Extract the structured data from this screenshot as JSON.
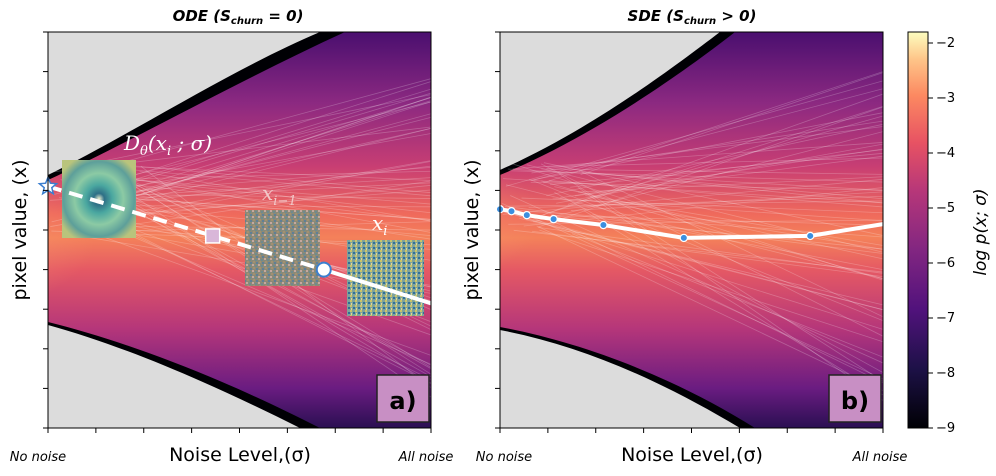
{
  "chart_data": [
    {
      "type": "heatmap",
      "panel": "a",
      "title": "ODE (S_churn = 0)",
      "title_parts": {
        "prefix": "ODE (",
        "var": "S",
        "sub": "churn",
        "suffix": " = 0)"
      },
      "xlabel": "Noise Level,(σ)",
      "ylabel": "pixel value, (x)",
      "x_start_label": "No noise",
      "x_end_label": "All noise",
      "panel_label": "a)",
      "xlim": [
        0,
        1
      ],
      "ylim": [
        -1,
        1
      ],
      "trajectory": {
        "style": "dashed-then-solid",
        "x": [
          0.0,
          0.43,
          0.72,
          1.0
        ],
        "y": [
          0.22,
          -0.03,
          -0.2,
          -0.37
        ]
      },
      "markers": [
        {
          "kind": "star",
          "x": 0.0,
          "y": 0.22
        },
        {
          "kind": "square",
          "x": 0.43,
          "y": -0.03
        },
        {
          "kind": "circle",
          "x": 0.72,
          "y": -0.2
        }
      ],
      "annotations": [
        {
          "text": "D_θ(x_i ; σ)",
          "base": "D",
          "sub": "θ",
          "arg": "(x",
          "argsub": "i",
          "tail": " ; σ)"
        },
        {
          "text": "x_{i-1}",
          "base": "x",
          "sub": "i−1"
        },
        {
          "text": "x_i",
          "base": "x",
          "sub": "i"
        }
      ]
    },
    {
      "type": "heatmap",
      "panel": "b",
      "title": "SDE (S_churn > 0)",
      "title_parts": {
        "prefix": "SDE (",
        "var": "S",
        "sub": "churn",
        "suffix": " > 0)"
      },
      "xlabel": "Noise Level,(σ)",
      "ylabel": "pixel value, (x)",
      "x_start_label": "No noise",
      "x_end_label": "All noise",
      "panel_label": "b)",
      "xlim": [
        0,
        1
      ],
      "ylim": [
        -1,
        1
      ],
      "trajectory": {
        "style": "solid",
        "x": [
          0.0,
          0.03,
          0.07,
          0.14,
          0.27,
          0.48,
          0.81,
          1.0
        ],
        "y": [
          0.105,
          0.095,
          0.075,
          0.055,
          0.025,
          -0.04,
          -0.03,
          0.03
        ]
      },
      "points": {
        "x": [
          0.0,
          0.03,
          0.07,
          0.14,
          0.27,
          0.48,
          0.81
        ],
        "y": [
          0.105,
          0.095,
          0.075,
          0.055,
          0.025,
          -0.04,
          -0.03
        ]
      }
    }
  ],
  "colorbar": {
    "label": "log p(x; σ)",
    "min": -9,
    "max": -1.8,
    "ticks": [
      -2,
      -3,
      -4,
      -5,
      -6,
      -7,
      -8,
      -9
    ],
    "tick_labels": [
      "−2",
      "−3",
      "−4",
      "−5",
      "−6",
      "−7",
      "−8",
      "−9"
    ],
    "colormap": "magma"
  }
}
